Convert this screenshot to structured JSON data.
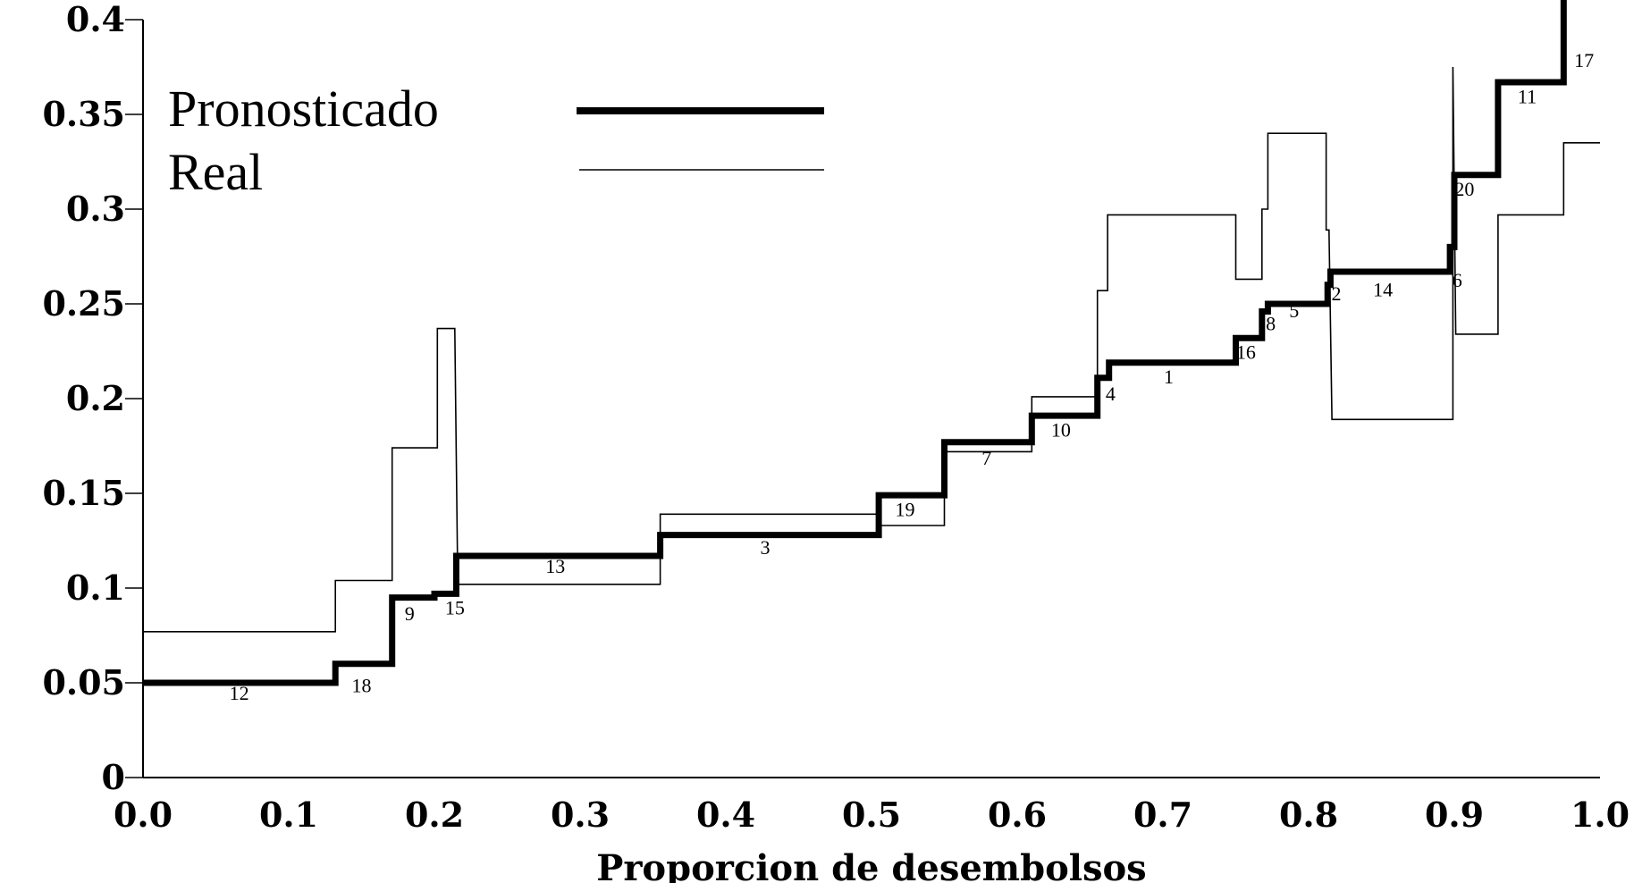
{
  "chart_data": {
    "type": "line",
    "title": "",
    "xlabel": "Proporcion de desembolsos",
    "ylabel": "",
    "xlim": [
      0.0,
      1.0
    ],
    "ylim": [
      0,
      0.4
    ],
    "x_ticks": [
      "0.0",
      "0.1",
      "0.2",
      "0.3",
      "0.4",
      "0.5",
      "0.6",
      "0.7",
      "0.8",
      "0.9",
      "1.0"
    ],
    "y_ticks": [
      "0",
      "0.05",
      "0.1",
      "0.15",
      "0.2",
      "0.25",
      "0.3",
      "0.35",
      "0.4"
    ],
    "grid": false,
    "legend_position": "top-left",
    "series": [
      {
        "name": "Pronosticado",
        "style": "thick",
        "points": [
          [
            0.0,
            0.05
          ],
          [
            0.132,
            0.05
          ],
          [
            0.132,
            0.06
          ],
          [
            0.171,
            0.06
          ],
          [
            0.171,
            0.095
          ],
          [
            0.2,
            0.095
          ],
          [
            0.2,
            0.097
          ],
          [
            0.215,
            0.097
          ],
          [
            0.215,
            0.117
          ],
          [
            0.355,
            0.117
          ],
          [
            0.355,
            0.128
          ],
          [
            0.505,
            0.128
          ],
          [
            0.505,
            0.149
          ],
          [
            0.55,
            0.149
          ],
          [
            0.55,
            0.177
          ],
          [
            0.61,
            0.177
          ],
          [
            0.61,
            0.191
          ],
          [
            0.655,
            0.191
          ],
          [
            0.655,
            0.211
          ],
          [
            0.663,
            0.211
          ],
          [
            0.663,
            0.219
          ],
          [
            0.75,
            0.219
          ],
          [
            0.75,
            0.232
          ],
          [
            0.768,
            0.232
          ],
          [
            0.768,
            0.246
          ],
          [
            0.772,
            0.246
          ],
          [
            0.772,
            0.25
          ],
          [
            0.813,
            0.25
          ],
          [
            0.813,
            0.26
          ],
          [
            0.815,
            0.26
          ],
          [
            0.815,
            0.267
          ],
          [
            0.897,
            0.267
          ],
          [
            0.897,
            0.28
          ],
          [
            0.9,
            0.28
          ],
          [
            0.9,
            0.318
          ],
          [
            0.93,
            0.318
          ],
          [
            0.93,
            0.367
          ],
          [
            0.975,
            0.367
          ],
          [
            0.975,
            0.42
          ]
        ]
      },
      {
        "name": "Real",
        "style": "thin",
        "points": [
          [
            0.0,
            0.077
          ],
          [
            0.132,
            0.077
          ],
          [
            0.132,
            0.104
          ],
          [
            0.171,
            0.104
          ],
          [
            0.171,
            0.174
          ],
          [
            0.202,
            0.174
          ],
          [
            0.202,
            0.237
          ],
          [
            0.214,
            0.237
          ],
          [
            0.216,
            0.102
          ],
          [
            0.355,
            0.102
          ],
          [
            0.355,
            0.139
          ],
          [
            0.505,
            0.139
          ],
          [
            0.505,
            0.133
          ],
          [
            0.55,
            0.133
          ],
          [
            0.55,
            0.172
          ],
          [
            0.61,
            0.172
          ],
          [
            0.61,
            0.201
          ],
          [
            0.655,
            0.201
          ],
          [
            0.655,
            0.257
          ],
          [
            0.662,
            0.257
          ],
          [
            0.662,
            0.297
          ],
          [
            0.75,
            0.297
          ],
          [
            0.75,
            0.263
          ],
          [
            0.768,
            0.263
          ],
          [
            0.768,
            0.3
          ],
          [
            0.772,
            0.3
          ],
          [
            0.772,
            0.34
          ],
          [
            0.812,
            0.34
          ],
          [
            0.812,
            0.289
          ],
          [
            0.814,
            0.289
          ],
          [
            0.816,
            0.189
          ],
          [
            0.899,
            0.189
          ],
          [
            0.899,
            0.375
          ],
          [
            0.901,
            0.234
          ],
          [
            0.93,
            0.234
          ],
          [
            0.93,
            0.297
          ],
          [
            0.975,
            0.297
          ],
          [
            0.975,
            0.335
          ],
          [
            1.0,
            0.335
          ]
        ]
      }
    ],
    "segment_labels": [
      {
        "text": "12",
        "x": 0.066,
        "y": 0.041
      },
      {
        "text": "18",
        "x": 0.15,
        "y": 0.045
      },
      {
        "text": "9",
        "x": 0.183,
        "y": 0.083
      },
      {
        "text": "15",
        "x": 0.214,
        "y": 0.086
      },
      {
        "text": "13",
        "x": 0.283,
        "y": 0.108
      },
      {
        "text": "3",
        "x": 0.427,
        "y": 0.118
      },
      {
        "text": "19",
        "x": 0.523,
        "y": 0.138
      },
      {
        "text": "7",
        "x": 0.579,
        "y": 0.165
      },
      {
        "text": "10",
        "x": 0.63,
        "y": 0.18
      },
      {
        "text": "4",
        "x": 0.664,
        "y": 0.199
      },
      {
        "text": "1",
        "x": 0.704,
        "y": 0.208
      },
      {
        "text": "16",
        "x": 0.757,
        "y": 0.221
      },
      {
        "text": "8",
        "x": 0.774,
        "y": 0.236
      },
      {
        "text": "5",
        "x": 0.79,
        "y": 0.243
      },
      {
        "text": "2",
        "x": 0.819,
        "y": 0.252
      },
      {
        "text": "14",
        "x": 0.851,
        "y": 0.254
      },
      {
        "text": "6",
        "x": 0.902,
        "y": 0.259
      },
      {
        "text": "20",
        "x": 0.907,
        "y": 0.307
      },
      {
        "text": "11",
        "x": 0.95,
        "y": 0.356
      },
      {
        "text": "17",
        "x": 0.989,
        "y": 0.375
      }
    ]
  }
}
